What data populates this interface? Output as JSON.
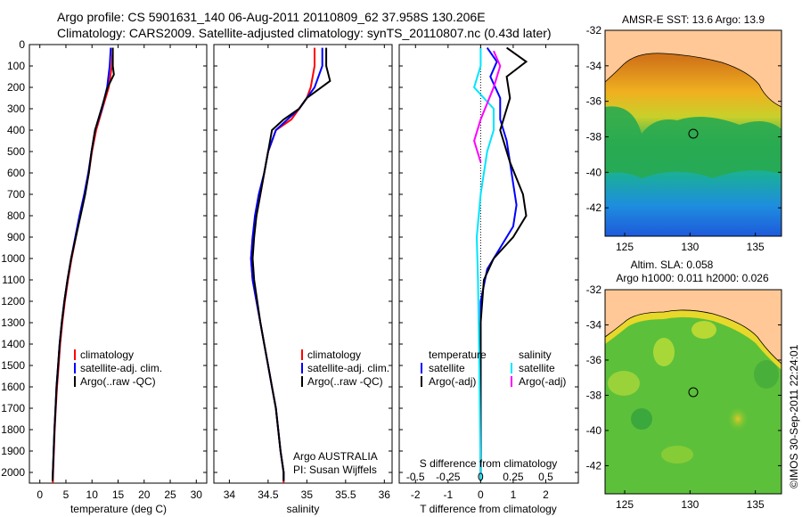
{
  "header": {
    "line1": "Argo profile: CS 5901631_140 06-Aug-2011 20110809_62 37.958S 130.206E",
    "line2": "Climatology: CARS2009. Satellite-adjusted climatology: synTS_20110807.nc (0.43d later)"
  },
  "watermark": "©IMOS 30-Sep-2011 22:24:01",
  "colors": {
    "climatology": "#ff0000",
    "satellite": "#0000ff",
    "argo": "#000000",
    "cyan": "#00e5ff",
    "magenta": "#ff00ff",
    "land": "#ffc896"
  },
  "panels": {
    "temperature": {
      "xlabel": "temperature (deg C)",
      "xticks": [
        "0",
        "5",
        "10",
        "15",
        "20",
        "25",
        "30"
      ],
      "legend": [
        "climatology",
        "satellite-adj. clim.",
        "Argo(..raw -QC)"
      ]
    },
    "salinity": {
      "xlabel": "salinity",
      "xticks": [
        "34",
        "34.5",
        "35",
        "35.5",
        "36"
      ],
      "legend": [
        "climatology",
        "satellite-adj. clim.",
        "Argo(..raw -QC)"
      ],
      "credit1": "Argo AUSTRALIA",
      "credit2": "PI: Susan Wijffels"
    },
    "difference": {
      "top_title": "S difference from climatology",
      "top_ticks": [
        "-0.5",
        "-0.25",
        "0",
        "0.25",
        "0.5"
      ],
      "xlabel": "T difference from climatology",
      "xticks": [
        "-2",
        "-1",
        "0",
        "1",
        "2"
      ],
      "legend_temp_title": "temperature",
      "legend_sal_title": "salinity",
      "legend_temp": [
        "satellite",
        "Argo(-adj)"
      ],
      "legend_sal": [
        "satellite",
        "Argo(-adj)"
      ]
    },
    "map_sst": {
      "title": "AMSR-E SST: 13.6 Argo: 13.9",
      "yticks": [
        "-32",
        "-34",
        "-36",
        "-38",
        "-40",
        "-42"
      ],
      "xticks": [
        "125",
        "130",
        "135"
      ]
    },
    "map_sla": {
      "title1": "Altim. SLA: 0.058",
      "title2": "Argo h1000: 0.011 h2000: 0.026",
      "yticks": [
        "-32",
        "-34",
        "-36",
        "-38",
        "-40",
        "-42"
      ],
      "xticks": [
        "125",
        "130",
        "135"
      ]
    }
  },
  "chart_data": [
    {
      "type": "line",
      "title": "",
      "xlabel": "temperature (deg C)",
      "ylabel": "",
      "xlim": [
        -2,
        32
      ],
      "ylim": [
        2050,
        0
      ],
      "yticks": [
        0,
        100,
        200,
        300,
        400,
        500,
        600,
        700,
        800,
        900,
        1000,
        1100,
        1200,
        1300,
        1400,
        1500,
        1600,
        1700,
        1800,
        1900,
        2000
      ],
      "series": [
        {
          "name": "climatology",
          "color": "#ff0000",
          "points": [
            [
              14,
              15
            ],
            [
              13.8,
              100
            ],
            [
              13.2,
              200
            ],
            [
              12,
              300
            ],
            [
              10.8,
              400
            ],
            [
              10,
              500
            ],
            [
              9.4,
              600
            ],
            [
              8.6,
              700
            ],
            [
              7.7,
              800
            ],
            [
              6.9,
              900
            ],
            [
              6.1,
              1000
            ],
            [
              5.4,
              1100
            ],
            [
              4.8,
              1200
            ],
            [
              4.3,
              1300
            ],
            [
              3.9,
              1400
            ],
            [
              3.6,
              1500
            ],
            [
              3.3,
              1600
            ],
            [
              3.05,
              1700
            ],
            [
              2.85,
              1800
            ],
            [
              2.7,
              1900
            ],
            [
              2.55,
              2000
            ],
            [
              2.5,
              2050
            ]
          ]
        },
        {
          "name": "satellite-adj. clim.",
          "color": "#0000ff",
          "points": [
            [
              13.6,
              15
            ],
            [
              13.4,
              100
            ],
            [
              12.9,
              200
            ],
            [
              11.9,
              300
            ],
            [
              10.6,
              400
            ],
            [
              9.9,
              500
            ],
            [
              9.3,
              600
            ],
            [
              8.5,
              700
            ],
            [
              7.6,
              800
            ],
            [
              6.8,
              900
            ],
            [
              6.0,
              1000
            ],
            [
              5.3,
              1100
            ],
            [
              4.7,
              1200
            ],
            [
              4.2,
              1300
            ],
            [
              3.8,
              1400
            ],
            [
              3.5,
              1500
            ],
            [
              3.2,
              1600
            ],
            [
              3.0,
              1700
            ],
            [
              2.8,
              1800
            ],
            [
              2.65,
              1900
            ],
            [
              2.5,
              2000
            ],
            [
              2.45,
              2040
            ]
          ]
        },
        {
          "name": "Argo(..raw -QC)",
          "color": "#000000",
          "points": [
            [
              14.0,
              15
            ],
            [
              14.0,
              100
            ],
            [
              14.2,
              140
            ],
            [
              13.0,
              200
            ],
            [
              11.8,
              300
            ],
            [
              10.6,
              400
            ],
            [
              9.9,
              500
            ],
            [
              9.4,
              600
            ],
            [
              8.7,
              700
            ],
            [
              7.8,
              800
            ],
            [
              6.9,
              900
            ],
            [
              6.0,
              1000
            ],
            [
              5.3,
              1100
            ],
            [
              4.7,
              1200
            ],
            [
              4.2,
              1300
            ],
            [
              3.8,
              1400
            ],
            [
              3.5,
              1500
            ],
            [
              3.2,
              1600
            ],
            [
              3.0,
              1700
            ],
            [
              2.8,
              1800
            ],
            [
              2.65,
              1900
            ],
            [
              2.5,
              2000
            ],
            [
              2.45,
              2040
            ]
          ]
        }
      ]
    },
    {
      "type": "line",
      "title": "",
      "xlabel": "salinity",
      "ylabel": "",
      "xlim": [
        33.8,
        36.1
      ],
      "ylim": [
        2050,
        0
      ],
      "series": [
        {
          "name": "climatology",
          "color": "#ff0000",
          "points": [
            [
              35.1,
              15
            ],
            [
              35.1,
              100
            ],
            [
              35.05,
              200
            ],
            [
              35.0,
              250
            ],
            [
              34.9,
              300
            ],
            [
              34.8,
              350
            ],
            [
              34.6,
              400
            ],
            [
              34.5,
              500
            ],
            [
              34.45,
              600
            ],
            [
              34.4,
              700
            ],
            [
              34.35,
              800
            ],
            [
              34.3,
              900
            ],
            [
              34.28,
              1000
            ],
            [
              34.3,
              1100
            ],
            [
              34.35,
              1200
            ],
            [
              34.4,
              1300
            ],
            [
              34.45,
              1400
            ],
            [
              34.5,
              1500
            ],
            [
              34.55,
              1600
            ],
            [
              34.6,
              1700
            ],
            [
              34.63,
              1800
            ],
            [
              34.66,
              1900
            ],
            [
              34.7,
              2000
            ],
            [
              34.7,
              2050
            ]
          ]
        },
        {
          "name": "satellite-adj. clim.",
          "color": "#0000ff",
          "points": [
            [
              35.2,
              15
            ],
            [
              35.2,
              100
            ],
            [
              35.1,
              200
            ],
            [
              35.0,
              250
            ],
            [
              34.9,
              300
            ],
            [
              34.75,
              350
            ],
            [
              34.6,
              400
            ],
            [
              34.5,
              500
            ],
            [
              34.45,
              600
            ],
            [
              34.38,
              700
            ],
            [
              34.33,
              800
            ],
            [
              34.3,
              900
            ],
            [
              34.28,
              1000
            ],
            [
              34.3,
              1100
            ],
            [
              34.35,
              1200
            ],
            [
              34.4,
              1300
            ],
            [
              34.45,
              1400
            ],
            [
              34.5,
              1500
            ],
            [
              34.55,
              1600
            ],
            [
              34.6,
              1700
            ],
            [
              34.63,
              1800
            ],
            [
              34.66,
              1900
            ],
            [
              34.7,
              2000
            ],
            [
              34.7,
              2040
            ]
          ]
        },
        {
          "name": "Argo(..raw -QC)",
          "color": "#000000",
          "points": [
            [
              35.25,
              15
            ],
            [
              35.25,
              100
            ],
            [
              35.3,
              170
            ],
            [
              35.0,
              250
            ],
            [
              34.9,
              300
            ],
            [
              34.7,
              350
            ],
            [
              34.55,
              400
            ],
            [
              34.5,
              500
            ],
            [
              34.45,
              600
            ],
            [
              34.4,
              700
            ],
            [
              34.35,
              800
            ],
            [
              34.32,
              900
            ],
            [
              34.3,
              1000
            ],
            [
              34.32,
              1100
            ],
            [
              34.36,
              1200
            ],
            [
              34.4,
              1300
            ],
            [
              34.45,
              1400
            ],
            [
              34.5,
              1500
            ],
            [
              34.55,
              1600
            ],
            [
              34.6,
              1700
            ],
            [
              34.63,
              1800
            ],
            [
              34.66,
              1900
            ],
            [
              34.7,
              2000
            ],
            [
              34.7,
              2040
            ]
          ]
        }
      ]
    },
    {
      "type": "line",
      "title": "",
      "xlabel": "T difference from climatology",
      "ylabel": "",
      "xlim": [
        -2.5,
        3.0
      ],
      "ylim": [
        2050,
        0
      ],
      "top_axis": {
        "label": "S difference from climatology",
        "xlim": [
          -0.625,
          0.75
        ]
      },
      "series": [
        {
          "name": "satellite",
          "group": "temperature",
          "color": "#0000ff",
          "points": [
            [
              0.2,
              15
            ],
            [
              0.5,
              80
            ],
            [
              0.3,
              150
            ],
            [
              0.6,
              250
            ],
            [
              0.6,
              350
            ],
            [
              0.8,
              450
            ],
            [
              0.9,
              550
            ],
            [
              1.0,
              650
            ],
            [
              1.1,
              750
            ],
            [
              1.0,
              850
            ],
            [
              0.6,
              950
            ],
            [
              0.2,
              1050
            ],
            [
              0.0,
              1200
            ],
            [
              0.0,
              1500
            ],
            [
              0.0,
              2040
            ]
          ]
        },
        {
          "name": "Argo(-adj)",
          "group": "temperature",
          "color": "#000000",
          "points": [
            [
              0.8,
              15
            ],
            [
              1.4,
              80
            ],
            [
              0.8,
              150
            ],
            [
              0.9,
              250
            ],
            [
              0.6,
              400
            ],
            [
              0.9,
              550
            ],
            [
              1.3,
              700
            ],
            [
              1.4,
              800
            ],
            [
              1.0,
              900
            ],
            [
              0.4,
              1000
            ],
            [
              0.1,
              1100
            ],
            [
              0.0,
              1300
            ],
            [
              0.0,
              2040
            ]
          ]
        },
        {
          "name": "satellite",
          "group": "salinity",
          "color": "#00e5ff",
          "axis": "top",
          "points": [
            [
              0.0,
              15
            ],
            [
              0.0,
              100
            ],
            [
              -0.05,
              200
            ],
            [
              0.1,
              300
            ],
            [
              0.1,
              400
            ],
            [
              0.05,
              500
            ],
            [
              0.0,
              700
            ],
            [
              -0.03,
              900
            ],
            [
              -0.02,
              1100
            ],
            [
              -0.01,
              1500
            ],
            [
              0.0,
              2040
            ]
          ]
        },
        {
          "name": "Argo(-adj)",
          "group": "salinity",
          "color": "#ff00ff",
          "axis": "top",
          "points": [
            [
              0.1,
              30
            ],
            [
              0.15,
              100
            ],
            [
              0.1,
              200
            ],
            [
              0.0,
              350
            ],
            [
              -0.05,
              450
            ],
            [
              0.0,
              550
            ]
          ]
        }
      ]
    }
  ]
}
